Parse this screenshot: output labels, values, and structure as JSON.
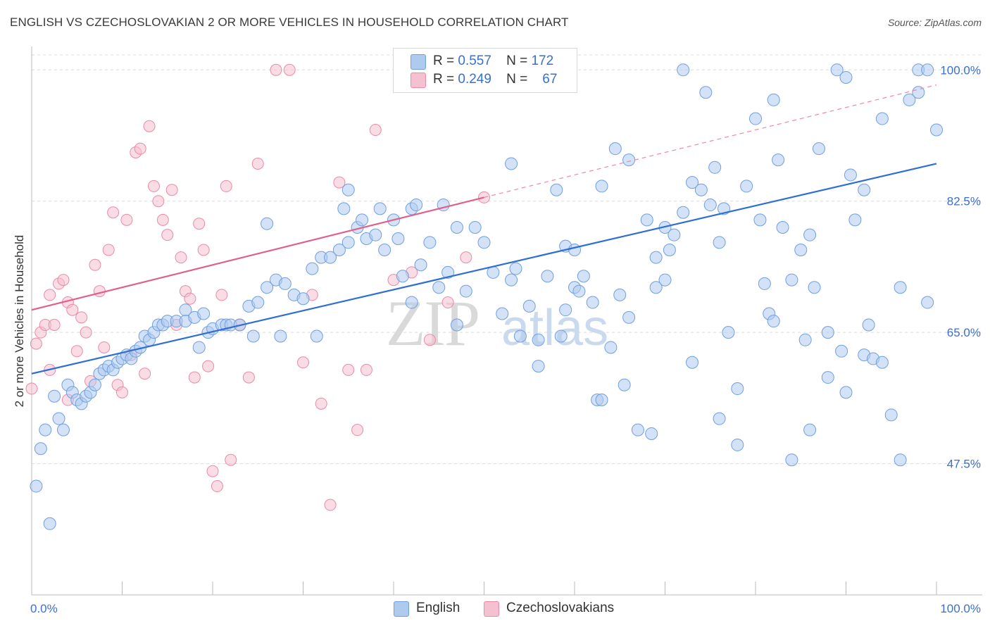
{
  "title": "ENGLISH VS CZECHOSLOVAKIAN 2 OR MORE VEHICLES IN HOUSEHOLD CORRELATION CHART",
  "source": "Source: ZipAtlas.com",
  "watermark": {
    "zip": "ZIP",
    "atlas": "atlas"
  },
  "legend": {
    "english": {
      "r_label": "R =",
      "r_value": "0.557",
      "n_label": "N =",
      "n_value": "172"
    },
    "czech": {
      "r_label": "R =",
      "r_value": "0.249",
      "n_label": "N =",
      "n_value": "67"
    }
  },
  "bottom_legend": {
    "english": "English",
    "czech": "Czechoslovakians"
  },
  "colors": {
    "english_fill": "#aecbef",
    "english_stroke": "#6f9fe0",
    "english_line": "#2f6fd0",
    "czech_fill": "#f5c0d0",
    "czech_stroke": "#e98aa8",
    "czech_line": "#e0608a",
    "axis_text": "#3a6fd0",
    "grid": "#dcdcdc"
  },
  "chart_data": {
    "type": "scatter",
    "title": "ENGLISH VS CZECHOSLOVAKIAN 2 OR MORE VEHICLES IN HOUSEHOLD CORRELATION CHART",
    "xlabel": "",
    "ylabel": "2 or more Vehicles in Household",
    "xlim": [
      0,
      100
    ],
    "ylim": [
      30,
      102
    ],
    "x_tick_labels": [
      "0.0%",
      "100.0%"
    ],
    "y_ticks": [
      47.5,
      65.0,
      82.5,
      100.0
    ],
    "y_tick_labels": [
      "47.5%",
      "65.0%",
      "82.5%",
      "100.0%"
    ],
    "grid": true,
    "series": [
      {
        "name": "English",
        "trend": {
          "x": [
            0,
            100
          ],
          "y": [
            59.5,
            87.5
          ]
        },
        "points": [
          [
            0.5,
            44.5
          ],
          [
            1,
            49.5
          ],
          [
            1.5,
            52
          ],
          [
            2,
            39.5
          ],
          [
            2.5,
            56.5
          ],
          [
            3,
            53.5
          ],
          [
            3.5,
            52
          ],
          [
            4,
            58
          ],
          [
            4.5,
            57
          ],
          [
            5,
            56
          ],
          [
            5.5,
            55.5
          ],
          [
            6,
            56.5
          ],
          [
            6.5,
            57
          ],
          [
            7,
            58
          ],
          [
            7.5,
            59.5
          ],
          [
            8,
            60
          ],
          [
            8.5,
            60.5
          ],
          [
            9,
            60
          ],
          [
            9.5,
            61
          ],
          [
            10,
            61.5
          ],
          [
            10.5,
            62
          ],
          [
            11,
            61.5
          ],
          [
            11.5,
            62.5
          ],
          [
            12,
            63
          ],
          [
            12.5,
            64.5
          ],
          [
            13,
            64
          ],
          [
            13.5,
            65
          ],
          [
            14,
            66
          ],
          [
            14.5,
            66
          ],
          [
            15,
            66.5
          ],
          [
            16,
            66.5
          ],
          [
            17,
            68
          ],
          [
            17,
            66.5
          ],
          [
            18,
            67
          ],
          [
            18.5,
            63
          ],
          [
            19,
            67.5
          ],
          [
            19.5,
            65
          ],
          [
            20,
            65.5
          ],
          [
            21,
            66
          ],
          [
            21.5,
            66
          ],
          [
            22,
            66
          ],
          [
            23,
            66
          ],
          [
            24,
            68.5
          ],
          [
            24.5,
            64.5
          ],
          [
            25,
            69
          ],
          [
            26,
            71
          ],
          [
            27,
            72
          ],
          [
            27.5,
            64.5
          ],
          [
            28,
            71.5
          ],
          [
            29,
            70
          ],
          [
            30,
            69.5
          ],
          [
            31,
            73.5
          ],
          [
            31.5,
            64.5
          ],
          [
            32,
            75
          ],
          [
            33,
            75
          ],
          [
            34,
            76
          ],
          [
            34.5,
            81.5
          ],
          [
            35,
            77
          ],
          [
            36,
            79
          ],
          [
            36.5,
            80
          ],
          [
            37,
            77.5
          ],
          [
            38,
            78
          ],
          [
            38.5,
            81.5
          ],
          [
            39,
            76
          ],
          [
            40,
            80
          ],
          [
            40.5,
            77.5
          ],
          [
            41,
            72.5
          ],
          [
            42,
            81.5
          ],
          [
            42.5,
            82
          ],
          [
            43,
            74
          ],
          [
            44,
            77
          ],
          [
            45,
            71
          ],
          [
            45.5,
            82
          ],
          [
            46,
            73
          ],
          [
            47,
            66
          ],
          [
            48,
            70.5
          ],
          [
            49,
            79
          ],
          [
            50,
            77
          ],
          [
            51,
            73
          ],
          [
            52,
            67.5
          ],
          [
            53,
            87.5
          ],
          [
            53.5,
            73.5
          ],
          [
            54,
            64.5
          ],
          [
            55,
            68.5
          ],
          [
            56,
            60.5
          ],
          [
            57,
            72.5
          ],
          [
            58,
            84
          ],
          [
            58.5,
            64.5
          ],
          [
            59,
            76.5
          ],
          [
            60,
            71
          ],
          [
            60.5,
            70.5
          ],
          [
            61,
            72.5
          ],
          [
            62,
            69
          ],
          [
            62.5,
            56
          ],
          [
            63,
            84.5
          ],
          [
            64,
            63
          ],
          [
            64.5,
            89.5
          ],
          [
            65,
            70
          ],
          [
            65.5,
            58
          ],
          [
            66,
            67
          ],
          [
            67,
            52
          ],
          [
            68,
            80
          ],
          [
            68.5,
            51.5
          ],
          [
            69,
            75
          ],
          [
            70,
            79
          ],
          [
            70.5,
            76
          ],
          [
            71,
            78
          ],
          [
            72,
            81
          ],
          [
            73,
            85
          ],
          [
            74,
            84
          ],
          [
            74.5,
            97
          ],
          [
            75,
            82
          ],
          [
            75.5,
            87
          ],
          [
            76,
            77
          ],
          [
            76.5,
            81.5
          ],
          [
            77,
            65
          ],
          [
            78,
            57.5
          ],
          [
            79,
            84.5
          ],
          [
            80,
            93.5
          ],
          [
            80.5,
            80
          ],
          [
            81,
            71.5
          ],
          [
            81.5,
            67.5
          ],
          [
            82,
            96
          ],
          [
            82.5,
            88
          ],
          [
            83,
            79
          ],
          [
            84,
            72
          ],
          [
            85,
            76
          ],
          [
            85.5,
            64
          ],
          [
            86,
            52
          ],
          [
            86.5,
            71
          ],
          [
            87,
            89.5
          ],
          [
            88,
            65
          ],
          [
            89,
            100
          ],
          [
            89.5,
            62.5
          ],
          [
            90,
            57
          ],
          [
            90.5,
            86
          ],
          [
            91,
            80
          ],
          [
            92,
            62
          ],
          [
            92.5,
            66
          ],
          [
            93,
            61.5
          ],
          [
            94,
            93.5
          ],
          [
            95,
            54
          ],
          [
            96,
            48
          ],
          [
            97,
            96
          ],
          [
            98,
            100
          ],
          [
            99,
            100
          ],
          [
            100,
            92
          ],
          [
            42,
            69
          ],
          [
            56,
            64
          ],
          [
            60,
            76
          ],
          [
            63,
            56
          ],
          [
            66,
            88
          ],
          [
            70,
            72
          ],
          [
            73,
            61
          ],
          [
            76,
            53.5
          ],
          [
            78,
            50
          ],
          [
            82,
            66.5
          ],
          [
            84,
            48
          ],
          [
            86,
            78
          ],
          [
            88,
            59
          ],
          [
            90,
            99
          ],
          [
            92,
            84
          ],
          [
            94,
            61
          ],
          [
            96,
            71
          ],
          [
            98,
            97
          ],
          [
            99,
            69
          ],
          [
            26,
            79.5
          ],
          [
            35,
            84
          ],
          [
            47,
            79
          ],
          [
            53,
            72
          ],
          [
            59,
            68
          ],
          [
            69,
            71
          ],
          [
            72,
            100
          ]
        ]
      },
      {
        "name": "Czechoslovakians",
        "trend_solid": {
          "x": [
            0,
            50
          ],
          "y": [
            68,
            83
          ]
        },
        "trend_dashed": {
          "x": [
            50,
            100
          ],
          "y": [
            83,
            98
          ]
        },
        "points": [
          [
            0,
            57.5
          ],
          [
            0.5,
            63.5
          ],
          [
            1,
            65
          ],
          [
            1.5,
            66
          ],
          [
            2,
            70
          ],
          [
            2.5,
            66
          ],
          [
            3,
            71.5
          ],
          [
            3.5,
            72
          ],
          [
            4,
            69
          ],
          [
            4.5,
            68
          ],
          [
            5,
            62.5
          ],
          [
            5.5,
            67
          ],
          [
            6,
            65
          ],
          [
            6.5,
            58.5
          ],
          [
            7,
            74
          ],
          [
            7.5,
            70.5
          ],
          [
            8,
            63
          ],
          [
            8.5,
            76
          ],
          [
            9,
            81
          ],
          [
            9.5,
            58
          ],
          [
            10,
            57
          ],
          [
            10.5,
            80
          ],
          [
            11,
            62
          ],
          [
            11.5,
            89
          ],
          [
            12,
            89.5
          ],
          [
            12.5,
            59.5
          ],
          [
            13,
            92.5
          ],
          [
            13.5,
            84.5
          ],
          [
            14,
            82.5
          ],
          [
            14.5,
            80
          ],
          [
            15,
            78
          ],
          [
            15.5,
            84
          ],
          [
            16,
            66
          ],
          [
            16.5,
            75
          ],
          [
            17,
            70.5
          ],
          [
            17.5,
            69.5
          ],
          [
            18,
            59
          ],
          [
            18.5,
            79.5
          ],
          [
            19,
            76
          ],
          [
            19.5,
            60.5
          ],
          [
            20,
            46.5
          ],
          [
            20.5,
            44.5
          ],
          [
            21,
            70
          ],
          [
            21.5,
            84.5
          ],
          [
            22,
            48
          ],
          [
            23,
            66
          ],
          [
            24,
            59
          ],
          [
            25,
            87.5
          ],
          [
            27,
            100
          ],
          [
            28.5,
            100
          ],
          [
            30,
            61
          ],
          [
            31,
            70
          ],
          [
            32,
            55.5
          ],
          [
            33,
            42
          ],
          [
            34,
            85
          ],
          [
            35,
            60
          ],
          [
            36,
            52
          ],
          [
            37,
            60
          ],
          [
            38,
            92
          ],
          [
            40,
            72
          ],
          [
            42,
            73
          ],
          [
            44,
            64
          ],
          [
            46,
            69
          ],
          [
            48,
            75
          ],
          [
            50,
            83
          ],
          [
            2,
            60
          ],
          [
            4,
            56
          ]
        ]
      }
    ]
  }
}
